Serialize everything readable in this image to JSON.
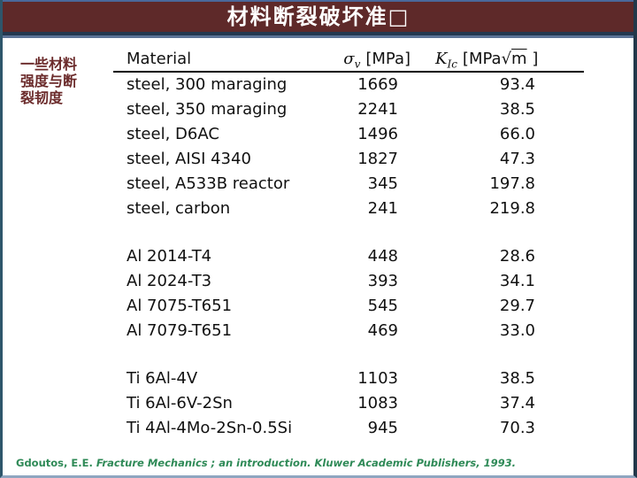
{
  "slide": {
    "title": "材料断裂破坏准□",
    "side_label_lines": [
      "一些材料",
      "强度与断",
      "裂韧度"
    ],
    "citation": {
      "author": "Gdoutos, E.E. ",
      "rest": "Fracture Mechanics ; an introduction. Kluwer Academic Publishers, 1993."
    }
  },
  "table": {
    "header": {
      "material": "Material",
      "sigma_symbol": "σ",
      "sigma_sub": "v",
      "sigma_unit": "[MPa]",
      "k_symbol": "K",
      "k_sub": "Ic",
      "k_unit_prefix": "[MPa",
      "sqrt_symbol": "√",
      "sqrt_arg": "m",
      "bracket_close": " ]"
    },
    "groups": [
      {
        "label": "steel",
        "rows": [
          {
            "name": "steel, 300 maraging",
            "sigma": "1669",
            "k": "93.4"
          },
          {
            "name": "steel, 350 maraging",
            "sigma": "2241",
            "k": "38.5"
          },
          {
            "name": "steel, D6AC",
            "sigma": "1496",
            "k": "66.0"
          },
          {
            "name": "steel, AISI 4340",
            "sigma": "1827",
            "k": "47.3"
          },
          {
            "name": "steel, A533B reactor",
            "sigma": "345",
            "k": "197.8"
          },
          {
            "name": "steel, carbon",
            "sigma": "241",
            "k": "219.8"
          }
        ]
      },
      {
        "label": "Al",
        "rows": [
          {
            "name": "Al 2014-T4",
            "sigma": "448",
            "k": "28.6"
          },
          {
            "name": "Al 2024-T3",
            "sigma": "393",
            "k": "34.1"
          },
          {
            "name": "Al 7075-T651",
            "sigma": "545",
            "k": "29.7"
          },
          {
            "name": "Al 7079-T651",
            "sigma": "469",
            "k": "33.0"
          }
        ]
      },
      {
        "label": "Ti",
        "rows": [
          {
            "name": "Ti 6Al-4V",
            "sigma": "1103",
            "k": "38.5"
          },
          {
            "name": "Ti 6Al-6V-2Sn",
            "sigma": "1083",
            "k": "37.4"
          },
          {
            "name": "Ti 4Al-4Mo-2Sn-0.5Si",
            "sigma": "945",
            "k": "70.3"
          }
        ]
      }
    ]
  },
  "colors": {
    "background": "#FFFFFF",
    "title_bar": "#5E2929",
    "title_border_top": "#4A689B",
    "title_border_bottom": "#24384F",
    "title_accent": "#5C7396",
    "side_text": "#6B2B2B",
    "table_text": "#111111",
    "rule": "#000000",
    "citation": "#2F8A57",
    "border_left": "#2E566B",
    "border_right": "#22384A",
    "border_bottom": "#8FA6C0"
  }
}
